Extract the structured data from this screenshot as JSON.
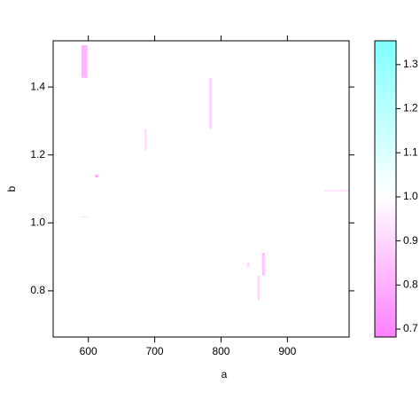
{
  "chart_data": {
    "type": "levelplot",
    "x_label": "a",
    "y_label": "b",
    "xlim": [
      547,
      993
    ],
    "ylim": [
      0.664,
      1.536
    ],
    "xticks": [
      600,
      700,
      800,
      900
    ],
    "yticks": [
      {
        "value": 0.8,
        "label": "0.8"
      },
      {
        "value": 1.0,
        "label": "1.0"
      },
      {
        "value": 1.2,
        "label": "1.2"
      },
      {
        "value": 1.4,
        "label": "1.4"
      }
    ],
    "colorkey_lim": [
      0.682,
      1.354
    ],
    "colorkey_ticks": [
      0.7,
      0.8,
      0.9,
      {
        "value": 1.0,
        "label": "1.0"
      },
      1.1,
      1.2,
      1.3
    ],
    "colors": [
      "#ff80ff",
      "#ffffff",
      "#80ffff"
    ],
    "color_mid": 1.0,
    "cells": [
      {
        "x": [
          589.4,
          598.7
        ],
        "y": [
          1.427,
          1.523
        ],
        "value": 0.82
      },
      {
        "x": [
          782,
          786
        ],
        "y": [
          1.277,
          1.426
        ],
        "value": 0.9
      },
      {
        "x": [
          685,
          688
        ],
        "y": [
          1.212,
          1.277
        ],
        "value": 0.9
      },
      {
        "x": [
          955,
          993
        ],
        "y": [
          1.092,
          1.097
        ],
        "value": 0.93
      },
      {
        "x": [
          610,
          615
        ],
        "y": [
          1.134,
          1.142
        ],
        "value": 0.8
      },
      {
        "x": [
          589,
          599
        ],
        "y": [
          1.016,
          1.019
        ],
        "value": 0.92
      },
      {
        "x": [
          855,
          858
        ],
        "y": [
          0.773,
          0.844
        ],
        "value": 0.88
      },
      {
        "x": [
          862,
          866
        ],
        "y": [
          0.846,
          0.912
        ],
        "value": 0.85
      },
      {
        "x": [
          839,
          843
        ],
        "y": [
          0.87,
          0.883
        ],
        "value": 0.9
      }
    ]
  }
}
